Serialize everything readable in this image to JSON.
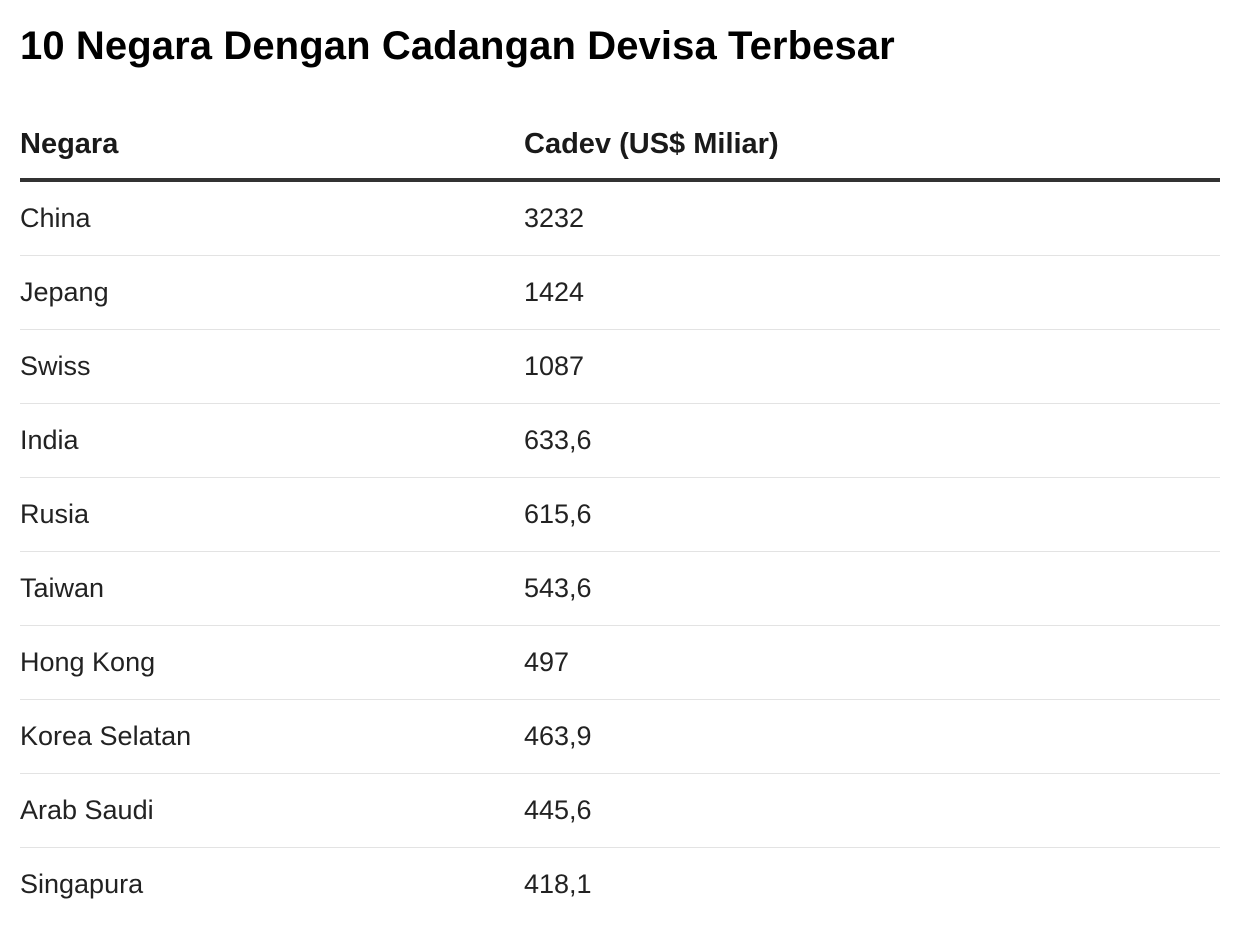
{
  "chart_data": {
    "type": "table",
    "title": "10 Negara Dengan Cadangan Devisa Terbesar",
    "columns": [
      "Negara",
      "Cadev (US$ Miliar)"
    ],
    "rows": [
      {
        "country": "China",
        "value": "3232"
      },
      {
        "country": "Jepang",
        "value": "1424"
      },
      {
        "country": "Swiss",
        "value": "1087"
      },
      {
        "country": "India",
        "value": "633,6"
      },
      {
        "country": "Rusia",
        "value": "615,6"
      },
      {
        "country": "Taiwan",
        "value": "543,6"
      },
      {
        "country": "Hong Kong",
        "value": "497"
      },
      {
        "country": "Korea Selatan",
        "value": "463,9"
      },
      {
        "country": "Arab Saudi",
        "value": "445,6"
      },
      {
        "country": "Singapura",
        "value": "418,1"
      }
    ]
  }
}
